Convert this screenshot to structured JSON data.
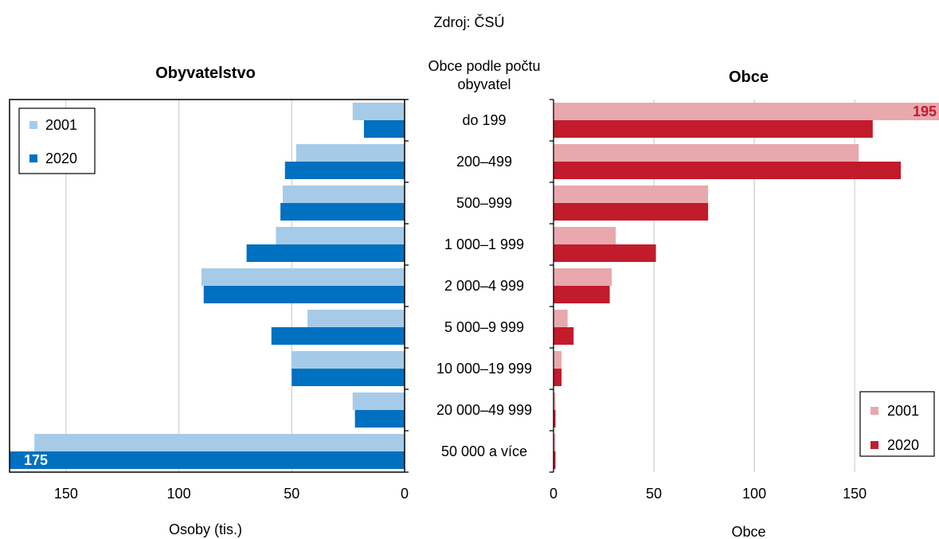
{
  "source": "Zdroj: ČSÚ",
  "chart_data": {
    "type": "bar",
    "horizontal": true,
    "category_axis_title": [
      "Obce podle počtu",
      "obyvatel"
    ],
    "categories": [
      "do 199",
      "200–499",
      "500–999",
      "1 000–1 999",
      "2 000–4 999",
      "5 000–9 999",
      "10 000–19 999",
      "20 000–49 999",
      "50 000 a více"
    ],
    "panels": [
      {
        "title": "Obyvatelstvo",
        "xlabel": "Osoby (tis.)",
        "x_reversed": true,
        "xlim": [
          0,
          175
        ],
        "xticks": [
          0,
          50,
          100,
          150
        ],
        "grid": true,
        "legend": "top-left",
        "series": [
          {
            "name": "2001",
            "color": "#a6cbe8",
            "values": [
              23,
              48,
              54,
              57,
              90,
              43,
              50,
              23,
              164
            ]
          },
          {
            "name": "2020",
            "color": "#0070c0",
            "values": [
              18,
              53,
              55,
              70,
              89,
              59,
              50,
              22,
              175
            ]
          }
        ],
        "data_labels": [
          {
            "series": 1,
            "category": 8,
            "text": "175",
            "color": "#ffffff"
          }
        ]
      },
      {
        "title": "Obce",
        "xlabel": "Obce",
        "x_reversed": false,
        "xlim": [
          0,
          192
        ],
        "xticks": [
          0,
          50,
          100,
          150
        ],
        "grid": true,
        "legend": "bottom-right",
        "series": [
          {
            "name": "2001",
            "color": "#e8a8ae",
            "values": [
              195,
              152,
              77,
              31,
              29,
              7,
              4,
              1,
              1
            ]
          },
          {
            "name": "2020",
            "color": "#c21b2c",
            "values": [
              159,
              173,
              77,
              51,
              28,
              10,
              4,
              1,
              1
            ]
          }
        ],
        "data_labels": [
          {
            "series": 0,
            "category": 0,
            "text": "195",
            "color": "#c21b2c"
          }
        ]
      }
    ]
  }
}
